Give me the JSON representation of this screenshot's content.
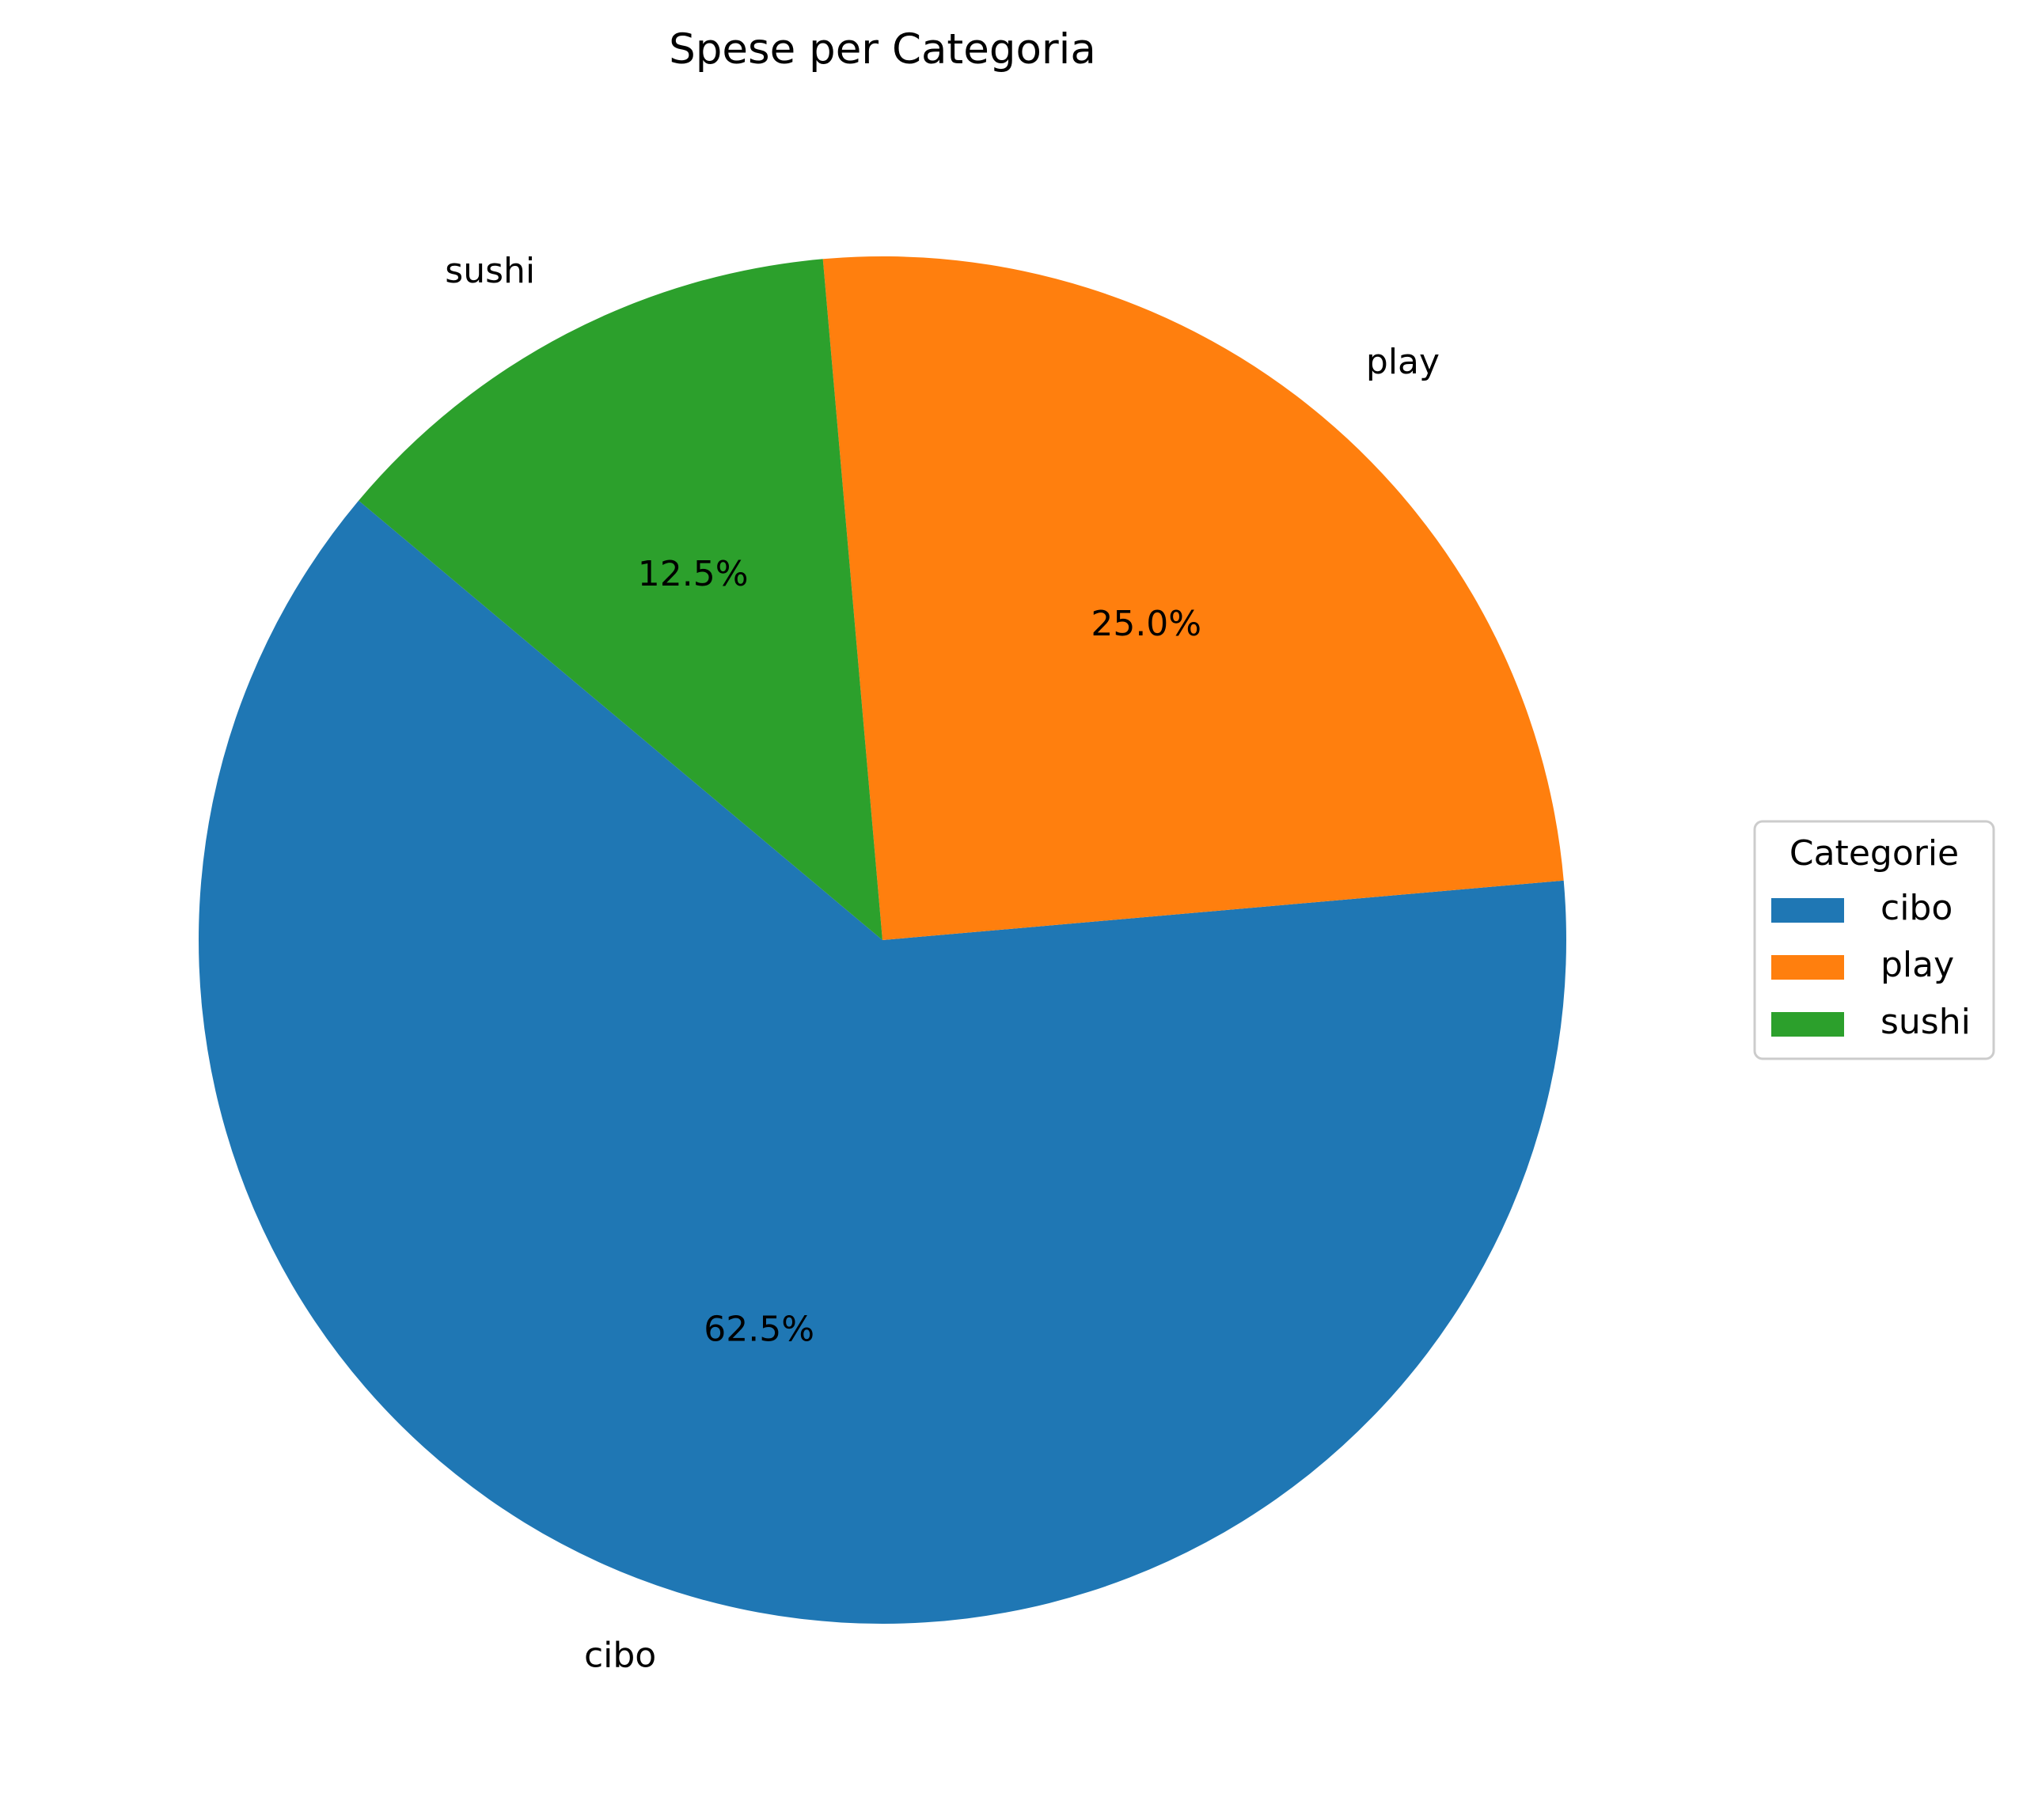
{
  "chart_data": {
    "type": "pie",
    "title": "Spese per Categoria",
    "categories": [
      "cibo",
      "play",
      "sushi"
    ],
    "values": [
      62.5,
      25.0,
      12.5
    ],
    "percent_labels": [
      "62.5%",
      "25.0%",
      "12.5%"
    ],
    "colors": [
      "#1f77b4",
      "#ff7f0e",
      "#2ca02c"
    ],
    "legend": {
      "title": "Categorie",
      "placement": "center-right",
      "entries": [
        "cibo",
        "play",
        "sushi"
      ]
    }
  }
}
